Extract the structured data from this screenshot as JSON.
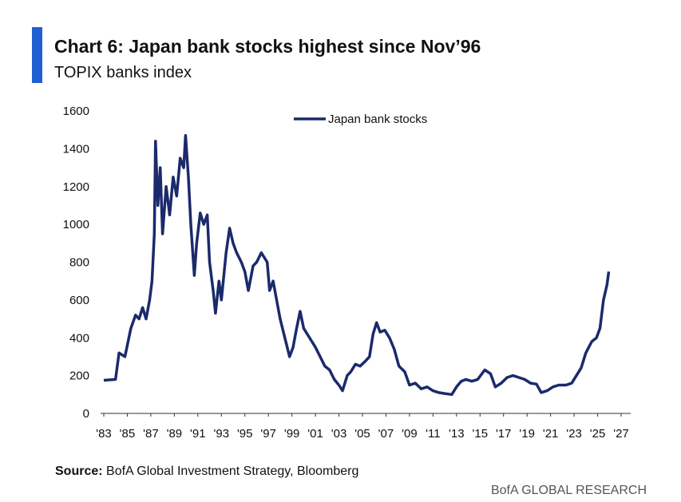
{
  "chart_data": {
    "type": "line",
    "title": "Chart 6: Japan bank stocks highest since Nov’96",
    "subtitle": "TOPIX banks index",
    "x": [
      1983.0,
      1984.0,
      1984.3,
      1984.8,
      1985.3,
      1985.7,
      1986.0,
      1986.3,
      1986.6,
      1986.9,
      1987.1,
      1987.3,
      1987.4,
      1987.6,
      1987.8,
      1988.0,
      1988.3,
      1988.6,
      1988.9,
      1989.2,
      1989.5,
      1989.8,
      1989.95,
      1990.2,
      1990.4,
      1990.7,
      1990.9,
      1991.2,
      1991.5,
      1991.8,
      1992.0,
      1992.3,
      1992.5,
      1992.8,
      1993.0,
      1993.4,
      1993.7,
      1994.0,
      1994.3,
      1994.7,
      1995.0,
      1995.3,
      1995.7,
      1996.0,
      1996.4,
      1996.9,
      1997.1,
      1997.4,
      1997.7,
      1998.0,
      1998.4,
      1998.8,
      1999.1,
      1999.4,
      1999.7,
      2000.0,
      2000.3,
      2000.7,
      2001.0,
      2001.4,
      2001.8,
      2002.2,
      2002.6,
      2003.0,
      2003.3,
      2003.7,
      2004.0,
      2004.4,
      2004.8,
      2005.3,
      2005.6,
      2005.9,
      2006.2,
      2006.5,
      2006.9,
      2007.3,
      2007.7,
      2008.1,
      2008.6,
      2009.0,
      2009.5,
      2010.0,
      2010.5,
      2011.0,
      2011.5,
      2012.0,
      2012.6,
      2013.0,
      2013.4,
      2013.8,
      2014.3,
      2014.8,
      2015.4,
      2015.9,
      2016.3,
      2016.8,
      2017.3,
      2017.8,
      2018.3,
      2018.8,
      2019.3,
      2019.8,
      2020.2,
      2020.7,
      2021.2,
      2021.7,
      2022.3,
      2022.8,
      2023.2,
      2023.6,
      2024.0,
      2024.5,
      2024.9,
      2025.2,
      2025.5,
      2025.8,
      2025.95
    ],
    "series": [
      {
        "name": "Japan bank stocks",
        "color": "#1b2a6b",
        "values": [
          175,
          180,
          320,
          300,
          450,
          520,
          500,
          560,
          500,
          600,
          700,
          950,
          1440,
          1100,
          1300,
          950,
          1200,
          1050,
          1250,
          1150,
          1350,
          1300,
          1470,
          1250,
          1000,
          730,
          900,
          1060,
          1000,
          1050,
          800,
          650,
          530,
          700,
          600,
          850,
          980,
          900,
          850,
          800,
          750,
          650,
          780,
          800,
          850,
          800,
          650,
          700,
          600,
          500,
          400,
          300,
          350,
          450,
          540,
          450,
          420,
          380,
          350,
          300,
          250,
          230,
          180,
          150,
          120,
          200,
          220,
          260,
          250,
          280,
          300,
          420,
          480,
          430,
          440,
          400,
          340,
          250,
          220,
          150,
          160,
          130,
          140,
          120,
          110,
          105,
          100,
          140,
          170,
          180,
          170,
          180,
          230,
          210,
          140,
          160,
          190,
          200,
          190,
          180,
          160,
          155,
          110,
          120,
          140,
          150,
          150,
          160,
          200,
          240,
          320,
          380,
          400,
          450,
          600,
          680,
          750
        ]
      }
    ],
    "xlim": [
      1983,
      2027
    ],
    "xticks": [
      {
        "value": 1983,
        "label": "'83"
      },
      {
        "value": 1985,
        "label": "'85"
      },
      {
        "value": 1987,
        "label": "'87"
      },
      {
        "value": 1989,
        "label": "'89"
      },
      {
        "value": 1991,
        "label": "'91"
      },
      {
        "value": 1993,
        "label": "'93"
      },
      {
        "value": 1995,
        "label": "'95"
      },
      {
        "value": 1997,
        "label": "'97"
      },
      {
        "value": 1999,
        "label": "'99"
      },
      {
        "value": 2001,
        "label": "'01"
      },
      {
        "value": 2003,
        "label": "'03"
      },
      {
        "value": 2005,
        "label": "'05"
      },
      {
        "value": 2007,
        "label": "'07"
      },
      {
        "value": 2009,
        "label": "'09"
      },
      {
        "value": 2011,
        "label": "'11"
      },
      {
        "value": 2013,
        "label": "'13"
      },
      {
        "value": 2015,
        "label": "'15"
      },
      {
        "value": 2017,
        "label": "'17"
      },
      {
        "value": 2019,
        "label": "'19"
      },
      {
        "value": 2021,
        "label": "'21"
      },
      {
        "value": 2023,
        "label": "'23"
      },
      {
        "value": 2025,
        "label": "'25"
      },
      {
        "value": 2027,
        "label": "'27"
      }
    ],
    "ylim": [
      0,
      1600
    ],
    "yticks": [
      0,
      200,
      400,
      600,
      800,
      1000,
      1200,
      1400,
      1600
    ],
    "grid": false
  },
  "source": {
    "label": "Source:",
    "text": "BofA Global Investment Strategy, Bloomberg"
  },
  "brand": "BofA GLOBAL RESEARCH"
}
